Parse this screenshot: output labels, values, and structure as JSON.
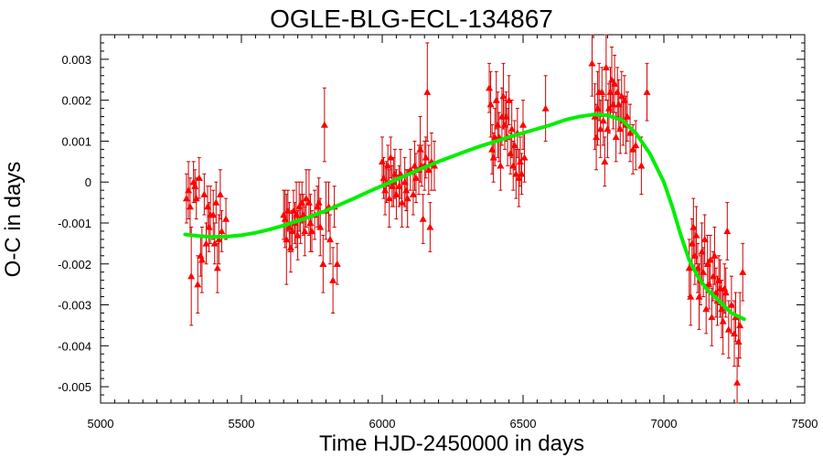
{
  "chart_data": {
    "type": "scatter",
    "title": "OGLE-BLG-ECL-134867",
    "xlabel": "Time HJD-2450000 in days",
    "ylabel": "O-C in days",
    "xlim": [
      5000,
      7500
    ],
    "ylim": [
      -0.0054,
      0.0036
    ],
    "xticks": [
      5000,
      5500,
      6000,
      6500,
      7000,
      7500
    ],
    "yticks": [
      0.003,
      0.002,
      0.001,
      0,
      -0.001,
      -0.002,
      -0.003,
      -0.004,
      -0.005
    ],
    "xtick_labels": [
      "5000",
      "5500",
      "6000",
      "6500",
      "7000",
      "7500"
    ],
    "ytick_labels": [
      "0.003",
      "0.002",
      "0.001",
      "0",
      "-0.001",
      "-0.002",
      "-0.003",
      "-0.004",
      "-0.005"
    ],
    "grid": false,
    "colors": {
      "points": "#ff0000",
      "errorbars": "#cc0000",
      "fit": "#00ee00"
    },
    "series": [
      {
        "type": "scatter_errorbars",
        "points": [
          [
            5305,
            -0.0004,
            0.0006
          ],
          [
            5312,
            -0.0002,
            0.0007
          ],
          [
            5318,
            -0.0006,
            0.0007
          ],
          [
            5322,
            -0.0023,
            0.0012
          ],
          [
            5330,
            0.0,
            0.0005
          ],
          [
            5335,
            -0.0001,
            0.0004
          ],
          [
            5340,
            -0.0004,
            0.0005
          ],
          [
            5345,
            -0.0025,
            0.0007
          ],
          [
            5350,
            0.0001,
            0.0005
          ],
          [
            5355,
            -0.0018,
            0.0005
          ],
          [
            5360,
            -0.0019,
            0.0008
          ],
          [
            5368,
            -0.0003,
            0.0005
          ],
          [
            5375,
            -0.0015,
            0.0005
          ],
          [
            5380,
            -0.0006,
            0.0005
          ],
          [
            5385,
            -0.0011,
            0.0006
          ],
          [
            5390,
            -0.0008,
            0.0007
          ],
          [
            5400,
            -0.0008,
            0.0006
          ],
          [
            5405,
            -0.0015,
            0.0005
          ],
          [
            5410,
            -0.0005,
            0.0005
          ],
          [
            5415,
            -0.0021,
            0.0006
          ],
          [
            5420,
            -0.0014,
            0.0006
          ],
          [
            5425,
            -0.0003,
            0.0006
          ],
          [
            5430,
            -0.0012,
            0.0005
          ],
          [
            5445,
            -0.0009,
            0.0005
          ],
          [
            5650,
            -0.0008,
            0.0006
          ],
          [
            5655,
            -0.0009,
            0.0007
          ],
          [
            5660,
            -0.0014,
            0.0011
          ],
          [
            5665,
            -0.0007,
            0.0005
          ],
          [
            5670,
            -0.0011,
            0.0006
          ],
          [
            5675,
            -0.0016,
            0.0006
          ],
          [
            5680,
            -0.0012,
            0.0005
          ],
          [
            5685,
            -0.0007,
            0.0005
          ],
          [
            5690,
            -0.001,
            0.0005
          ],
          [
            5695,
            -0.0008,
            0.0008
          ],
          [
            5700,
            -0.0013,
            0.0006
          ],
          [
            5705,
            -0.0006,
            0.0006
          ],
          [
            5710,
            -0.0009,
            0.0006
          ],
          [
            5715,
            -0.0005,
            0.0005
          ],
          [
            5720,
            -0.0008,
            0.0005
          ],
          [
            5725,
            -0.0012,
            0.0006
          ],
          [
            5730,
            -0.0004,
            0.0007
          ],
          [
            5740,
            -0.0005,
            0.0008
          ],
          [
            5745,
            -0.001,
            0.0007
          ],
          [
            5750,
            -0.0012,
            0.0005
          ],
          [
            5760,
            -0.0008,
            0.0006
          ],
          [
            5770,
            -0.0006,
            0.0005
          ],
          [
            5775,
            -0.0005,
            0.0006
          ],
          [
            5780,
            -0.0011,
            0.0007
          ],
          [
            5790,
            -0.002,
            0.0007
          ],
          [
            5795,
            0.0014,
            0.0009
          ],
          [
            5800,
            -0.0007,
            0.0007
          ],
          [
            5810,
            -0.0006,
            0.0006
          ],
          [
            5815,
            -0.0014,
            0.0006
          ],
          [
            5825,
            -0.0024,
            0.0008
          ],
          [
            5830,
            -0.0006,
            0.0005
          ],
          [
            5840,
            -0.002,
            0.0005
          ],
          [
            6000,
            0.0005,
            0.0006
          ],
          [
            6005,
            0.0001,
            0.0005
          ],
          [
            6010,
            -0.0002,
            0.0006
          ],
          [
            6015,
            0.0,
            0.0005
          ],
          [
            6020,
            0.0004,
            0.0005
          ],
          [
            6025,
            -0.0004,
            0.0007
          ],
          [
            6030,
            0.0006,
            0.0005
          ],
          [
            6035,
            -0.0001,
            0.0005
          ],
          [
            6040,
            0.0,
            0.0006
          ],
          [
            6045,
            0.0002,
            0.0006
          ],
          [
            6050,
            -0.0003,
            0.0006
          ],
          [
            6060,
            -0.0001,
            0.0005
          ],
          [
            6065,
            0.0002,
            0.0006
          ],
          [
            6070,
            -0.0005,
            0.0006
          ],
          [
            6080,
            0.0,
            0.0006
          ],
          [
            6085,
            -0.0002,
            0.0005
          ],
          [
            6090,
            -0.0004,
            0.0007
          ],
          [
            6100,
            0.0003,
            0.0005
          ],
          [
            6110,
            -0.0003,
            0.0005
          ],
          [
            6115,
            0.0004,
            0.0006
          ],
          [
            6120,
            0.0001,
            0.0006
          ],
          [
            6130,
            0.0003,
            0.0006
          ],
          [
            6135,
            0.0008,
            0.0008
          ],
          [
            6140,
            0.0004,
            0.0005
          ],
          [
            6145,
            -0.0009,
            0.0006
          ],
          [
            6150,
            0.0004,
            0.0006
          ],
          [
            6155,
            0.0006,
            0.0005
          ],
          [
            6160,
            0.0022,
            0.0012
          ],
          [
            6165,
            0.0003,
            0.0006
          ],
          [
            6170,
            -0.0011,
            0.0006
          ],
          [
            6175,
            0.0005,
            0.0007
          ],
          [
            6185,
            0.0004,
            0.0006
          ],
          [
            6380,
            0.0023,
            0.0006
          ],
          [
            6385,
            0.0019,
            0.0008
          ],
          [
            6390,
            0.0008,
            0.0006
          ],
          [
            6395,
            0.0006,
            0.0006
          ],
          [
            6400,
            0.0011,
            0.0007
          ],
          [
            6405,
            0.002,
            0.0007
          ],
          [
            6410,
            0.0014,
            0.0008
          ],
          [
            6415,
            0.0011,
            0.0006
          ],
          [
            6420,
            0.0004,
            0.0006
          ],
          [
            6425,
            0.0016,
            0.0007
          ],
          [
            6430,
            0.0021,
            0.0008
          ],
          [
            6435,
            0.0014,
            0.0006
          ],
          [
            6440,
            0.0016,
            0.0006
          ],
          [
            6445,
            0.0011,
            0.0007
          ],
          [
            6450,
            0.002,
            0.0006
          ],
          [
            6455,
            0.0007,
            0.0005
          ],
          [
            6460,
            0.0013,
            0.0007
          ],
          [
            6465,
            0.0004,
            0.0006
          ],
          [
            6470,
            0.0009,
            0.0006
          ],
          [
            6475,
            0.0002,
            0.0006
          ],
          [
            6480,
            0.0012,
            0.0006
          ],
          [
            6485,
            0.0001,
            0.0007
          ],
          [
            6490,
            0.0005,
            0.0006
          ],
          [
            6495,
            0.0002,
            0.0005
          ],
          [
            6500,
            0.0014,
            0.0006
          ],
          [
            6505,
            0.0006,
            0.0006
          ],
          [
            6580,
            0.0018,
            0.0008
          ],
          [
            6745,
            0.0029,
            0.0008
          ],
          [
            6755,
            0.0016,
            0.0008
          ],
          [
            6760,
            0.0011,
            0.0008
          ],
          [
            6765,
            0.0018,
            0.0009
          ],
          [
            6770,
            0.0022,
            0.0007
          ],
          [
            6775,
            0.0013,
            0.0007
          ],
          [
            6780,
            0.0022,
            0.0006
          ],
          [
            6785,
            0.0015,
            0.0006
          ],
          [
            6790,
            0.0005,
            0.0006
          ],
          [
            6795,
            0.0028,
            0.0008
          ],
          [
            6800,
            0.0013,
            0.0007
          ],
          [
            6805,
            0.0018,
            0.0006
          ],
          [
            6810,
            0.0022,
            0.0006
          ],
          [
            6815,
            0.0025,
            0.0008
          ],
          [
            6820,
            0.0019,
            0.0006
          ],
          [
            6825,
            0.0024,
            0.0007
          ],
          [
            6830,
            0.0011,
            0.0006
          ],
          [
            6835,
            0.0022,
            0.0006
          ],
          [
            6840,
            0.0019,
            0.0006
          ],
          [
            6845,
            0.0013,
            0.0006
          ],
          [
            6850,
            0.0021,
            0.0006
          ],
          [
            6855,
            0.0015,
            0.0006
          ],
          [
            6860,
            0.002,
            0.0006
          ],
          [
            6865,
            0.0014,
            0.0007
          ],
          [
            6870,
            0.0016,
            0.0006
          ],
          [
            6880,
            0.0012,
            0.0007
          ],
          [
            6890,
            0.0008,
            0.0006
          ],
          [
            6900,
            0.0009,
            0.0006
          ],
          [
            6920,
            0.0004,
            0.0007
          ],
          [
            6940,
            0.0022,
            0.0007
          ],
          [
            7090,
            -0.0021,
            0.0007
          ],
          [
            7095,
            -0.0028,
            0.0007
          ],
          [
            7100,
            -0.0015,
            0.0006
          ],
          [
            7105,
            -0.0011,
            0.0007
          ],
          [
            7110,
            -0.0018,
            0.0007
          ],
          [
            7115,
            -0.0013,
            0.0007
          ],
          [
            7120,
            -0.0021,
            0.0006
          ],
          [
            7125,
            -0.0028,
            0.0008
          ],
          [
            7130,
            -0.0024,
            0.0006
          ],
          [
            7135,
            -0.0017,
            0.0007
          ],
          [
            7140,
            -0.0022,
            0.0006
          ],
          [
            7145,
            -0.0014,
            0.0006
          ],
          [
            7150,
            -0.0031,
            0.0006
          ],
          [
            7155,
            -0.002,
            0.0007
          ],
          [
            7160,
            -0.0025,
            0.0006
          ],
          [
            7165,
            -0.0019,
            0.0006
          ],
          [
            7170,
            -0.0033,
            0.0007
          ],
          [
            7175,
            -0.0023,
            0.0006
          ],
          [
            7180,
            -0.0018,
            0.0007
          ],
          [
            7185,
            -0.0027,
            0.0006
          ],
          [
            7190,
            -0.0029,
            0.0006
          ],
          [
            7195,
            -0.0024,
            0.0006
          ],
          [
            7200,
            -0.0026,
            0.0007
          ],
          [
            7205,
            -0.0031,
            0.0007
          ],
          [
            7210,
            -0.0034,
            0.0008
          ],
          [
            7215,
            -0.0026,
            0.0006
          ],
          [
            7220,
            -0.0027,
            0.0006
          ],
          [
            7225,
            -0.0012,
            0.0007
          ],
          [
            7230,
            -0.0036,
            0.0007
          ],
          [
            7240,
            -0.003,
            0.0007
          ],
          [
            7250,
            -0.0037,
            0.0008
          ],
          [
            7255,
            -0.0033,
            0.0006
          ],
          [
            7260,
            -0.0049,
            0.0006
          ],
          [
            7265,
            -0.0039,
            0.0006
          ],
          [
            7270,
            -0.0035,
            0.0008
          ],
          [
            7280,
            -0.0022,
            0.0007
          ]
        ]
      },
      {
        "type": "fit_line",
        "x": [
          5300,
          5350,
          5400,
          5450,
          5500,
          5550,
          5600,
          5650,
          5700,
          5750,
          5800,
          5850,
          5900,
          5950,
          6000,
          6050,
          6100,
          6150,
          6200,
          6250,
          6300,
          6350,
          6400,
          6450,
          6500,
          6550,
          6600,
          6650,
          6700,
          6750,
          6800,
          6850,
          6900,
          6950,
          7000,
          7030,
          7060,
          7090,
          7120,
          7150,
          7180,
          7210,
          7240,
          7270,
          7285
        ],
        "y": [
          -0.00128,
          -0.00132,
          -0.00134,
          -0.00133,
          -0.0013,
          -0.00124,
          -0.00116,
          -0.00106,
          -0.00095,
          -0.00083,
          -0.0007,
          -0.00055,
          -0.0004,
          -0.00024,
          -9e-05,
          6e-05,
          0.00021,
          0.00036,
          0.0005,
          0.00063,
          0.00076,
          0.00088,
          0.00099,
          0.0011,
          0.0012,
          0.0013,
          0.0014,
          0.00152,
          0.0016,
          0.00165,
          0.00163,
          0.00152,
          0.0012,
          0.0007,
          0.0,
          -0.0006,
          -0.0013,
          -0.0019,
          -0.0023,
          -0.0026,
          -0.0028,
          -0.003,
          -0.0032,
          -0.0033,
          -0.00335
        ]
      }
    ]
  }
}
